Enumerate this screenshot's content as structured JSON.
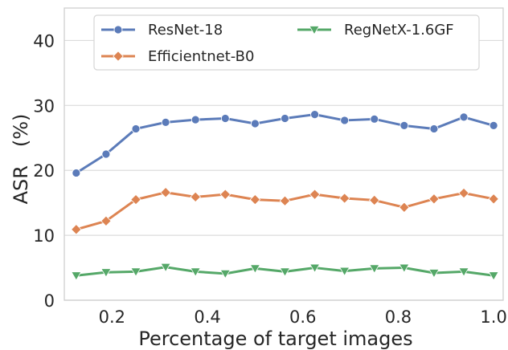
{
  "chart_data": {
    "type": "line",
    "xlabel": "Percentage of target images",
    "ylabel": "ASR   (%)",
    "xlim": [
      0.1,
      1.02
    ],
    "ylim": [
      0,
      45
    ],
    "x_ticks": [
      0.2,
      0.4,
      0.6,
      0.8,
      1.0
    ],
    "x_tick_labels": [
      "0.2",
      "0.4",
      "0.6",
      "0.8",
      "1.0"
    ],
    "y_ticks": [
      0,
      10,
      20,
      30,
      40
    ],
    "y_tick_labels": [
      "0",
      "10",
      "20",
      "30",
      "40"
    ],
    "grid": "horizontal",
    "legend_position": "top",
    "x": [
      0.125,
      0.1875,
      0.25,
      0.3125,
      0.375,
      0.4375,
      0.5,
      0.5625,
      0.625,
      0.6875,
      0.75,
      0.8125,
      0.875,
      0.9375,
      1.0
    ],
    "series": [
      {
        "name": "ResNet-18",
        "color": "#5b7bb9",
        "marker": "circle",
        "values": [
          19.6,
          22.5,
          26.4,
          27.4,
          27.8,
          28.0,
          27.2,
          28.0,
          28.6,
          27.7,
          27.9,
          26.9,
          26.4,
          28.2,
          26.9
        ]
      },
      {
        "name": "Efficientnet-B0",
        "color": "#dd8452",
        "marker": "diamond",
        "values": [
          10.9,
          12.2,
          15.5,
          16.6,
          15.9,
          16.3,
          15.5,
          15.3,
          16.3,
          15.7,
          15.4,
          14.3,
          15.6,
          16.5,
          15.6
        ]
      },
      {
        "name": "RegNetX-1.6GF",
        "color": "#55a868",
        "marker": "triangle-down",
        "values": [
          3.8,
          4.3,
          4.4,
          5.1,
          4.4,
          4.1,
          4.9,
          4.4,
          5.0,
          4.5,
          4.9,
          5.0,
          4.2,
          4.4,
          3.8
        ]
      }
    ]
  }
}
